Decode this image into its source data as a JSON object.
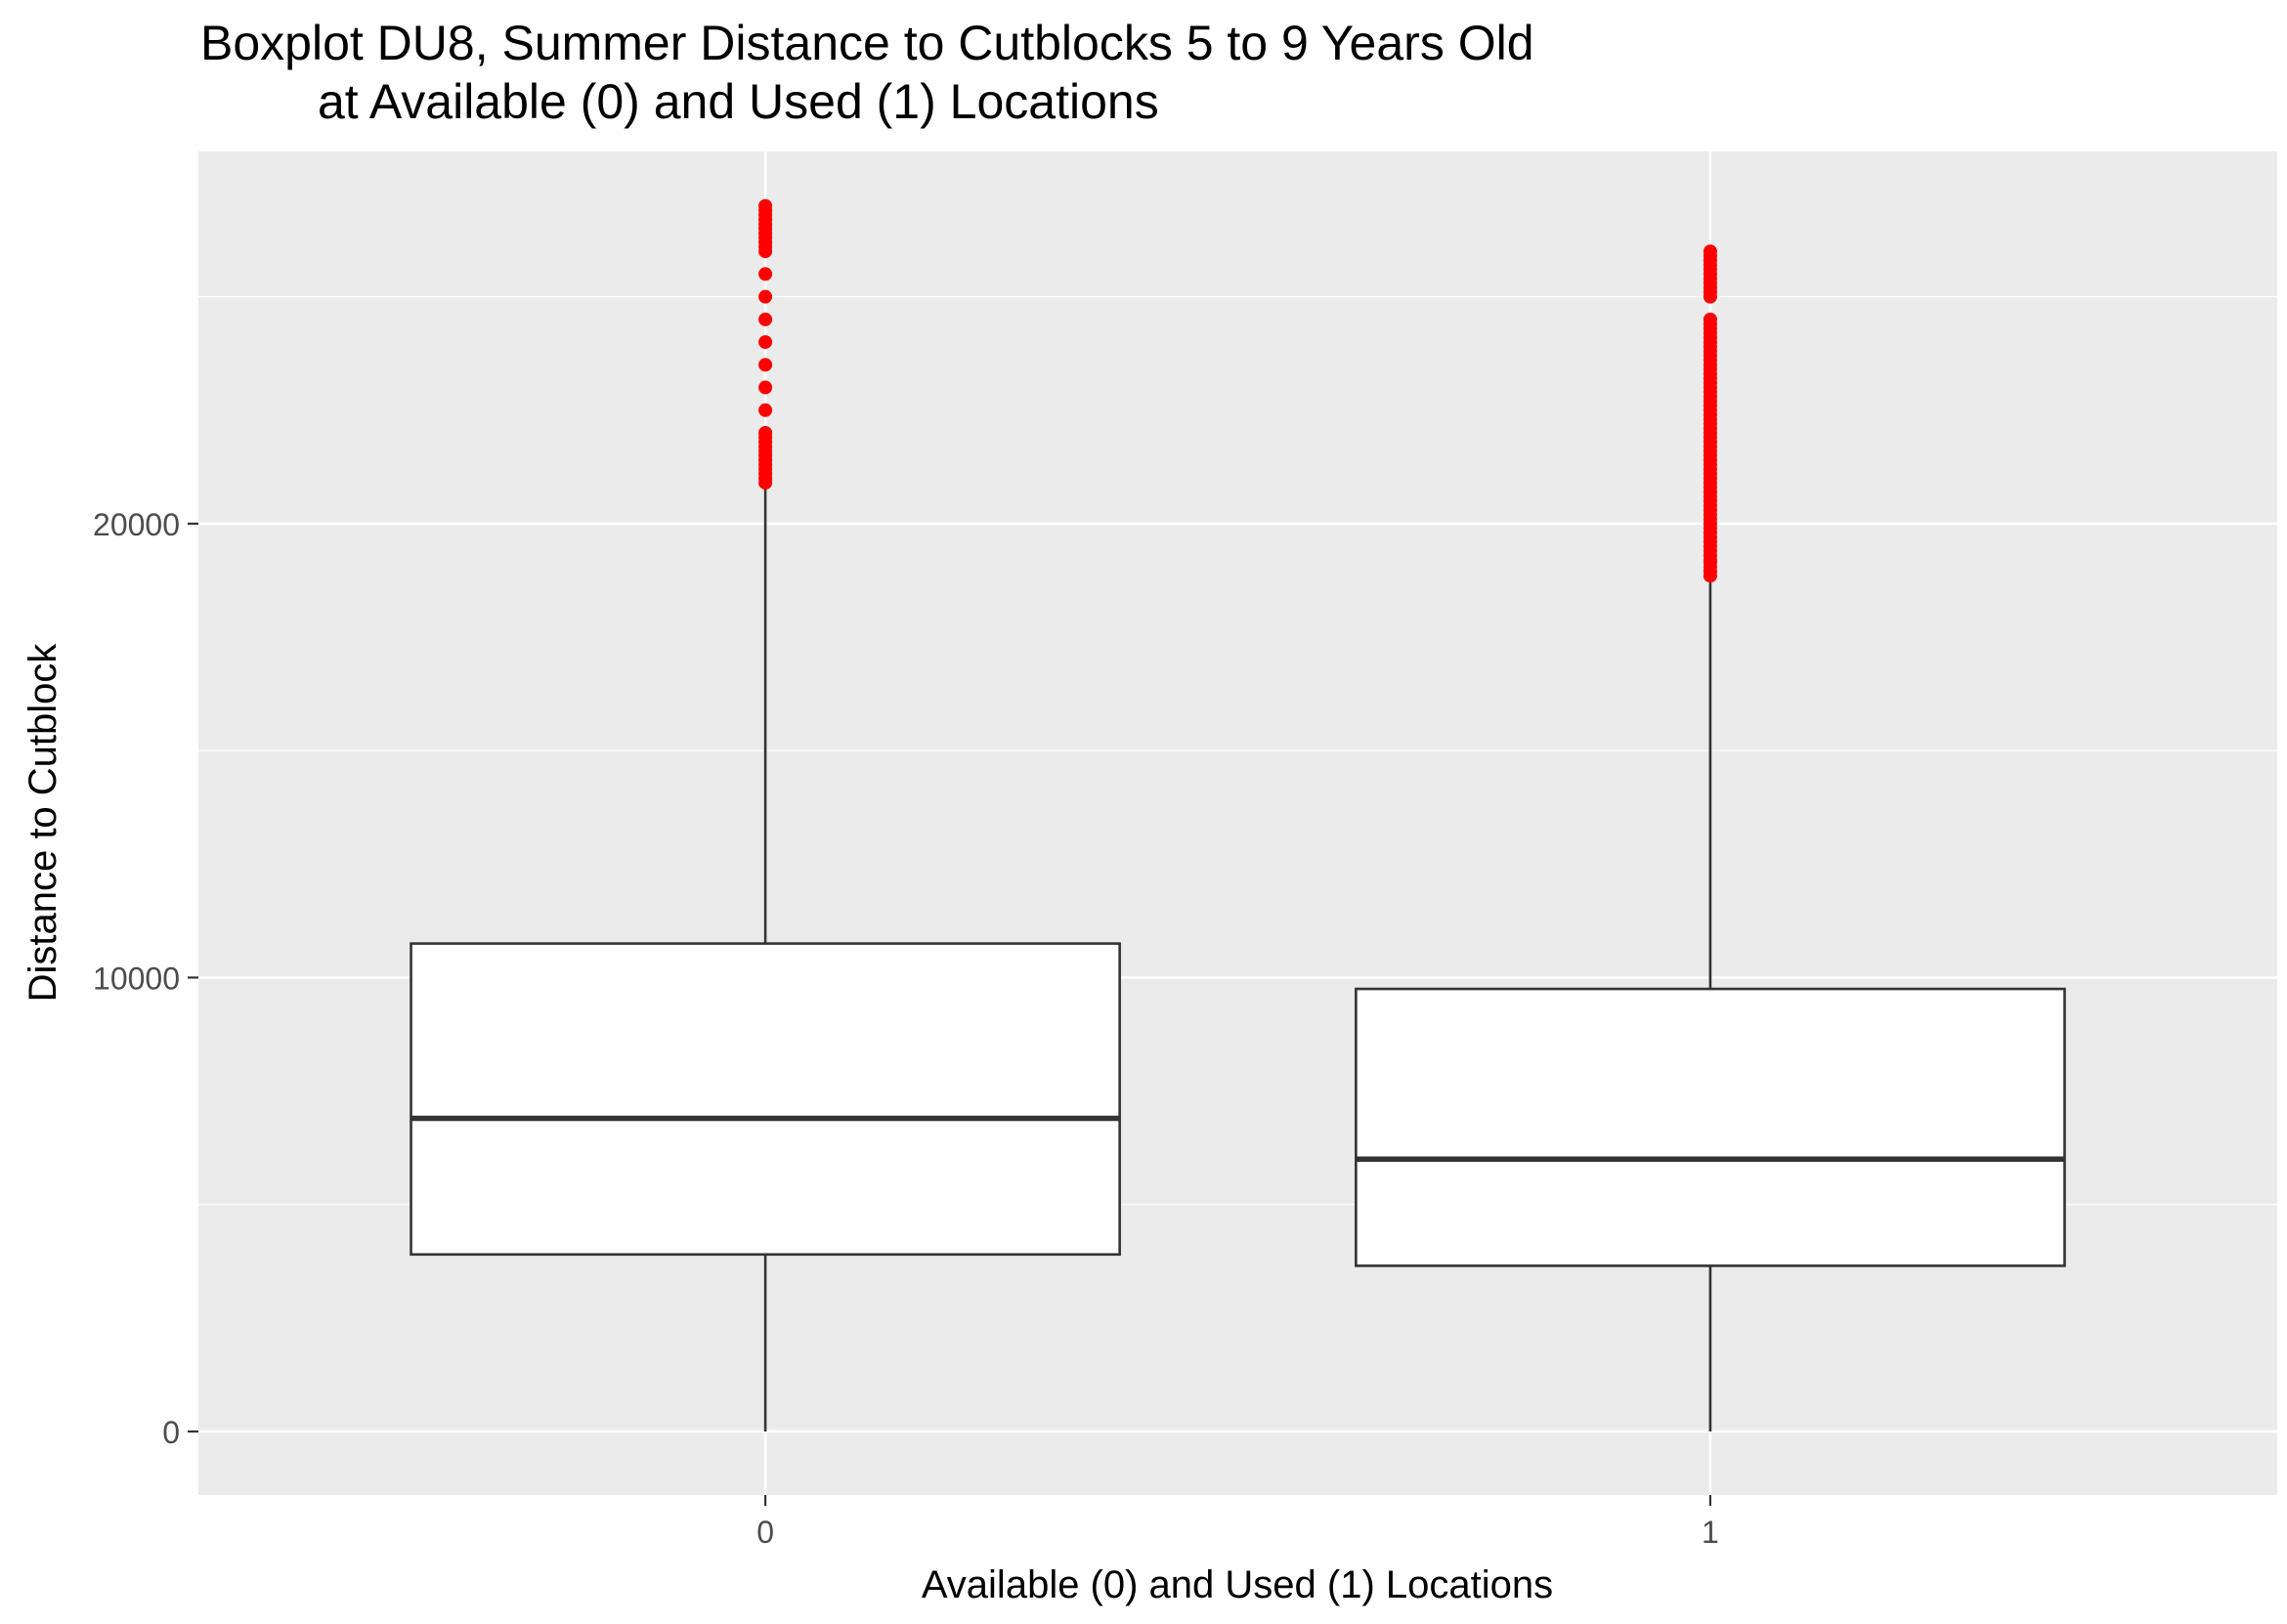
{
  "chart_data": {
    "type": "boxplot",
    "title_line1": "Boxplot DU8, Summer Distance to Cutblocks 5 to 9 Years Old",
    "title_line2": "at Available (0) and Used (1) Locations",
    "xlabel": "Available (0) and Used (1) Locations",
    "ylabel": "Distance to Cutblock",
    "ylim": [
      -1400,
      28200
    ],
    "yticks": [
      0,
      10000,
      20000
    ],
    "ytick_labels": [
      "0",
      "10000",
      "20000"
    ],
    "categories": [
      "0",
      "1"
    ],
    "boxes": [
      {
        "category": "0",
        "min": 0,
        "q1": 3900,
        "median": 6900,
        "q3": 10750,
        "whisker_high": 20850,
        "outliers": [
          20900,
          21200,
          21600,
          22000,
          22500,
          23000,
          23500,
          24000,
          24500,
          25000,
          25500,
          26000,
          26300,
          26500,
          26700,
          27000
        ]
      },
      {
        "category": "1",
        "min": 0,
        "q1": 3650,
        "median": 6000,
        "q3": 9750,
        "whisker_high": 18800,
        "outliers": [
          18850,
          19200,
          19600,
          20000,
          20400,
          20800,
          21200,
          21600,
          22000,
          22400,
          22800,
          23200,
          23500,
          23800,
          24000,
          24300,
          24500,
          25000,
          25300,
          25600,
          25800,
          26000
        ]
      }
    ],
    "grid": true,
    "legend": "none",
    "colors": {
      "panel": "#ebebeb",
      "grid": "#ffffff",
      "box_fill": "#ffffff",
      "box_stroke": "#333333",
      "outlier": "#ff0000",
      "tick_text": "#4d4d4d"
    }
  }
}
